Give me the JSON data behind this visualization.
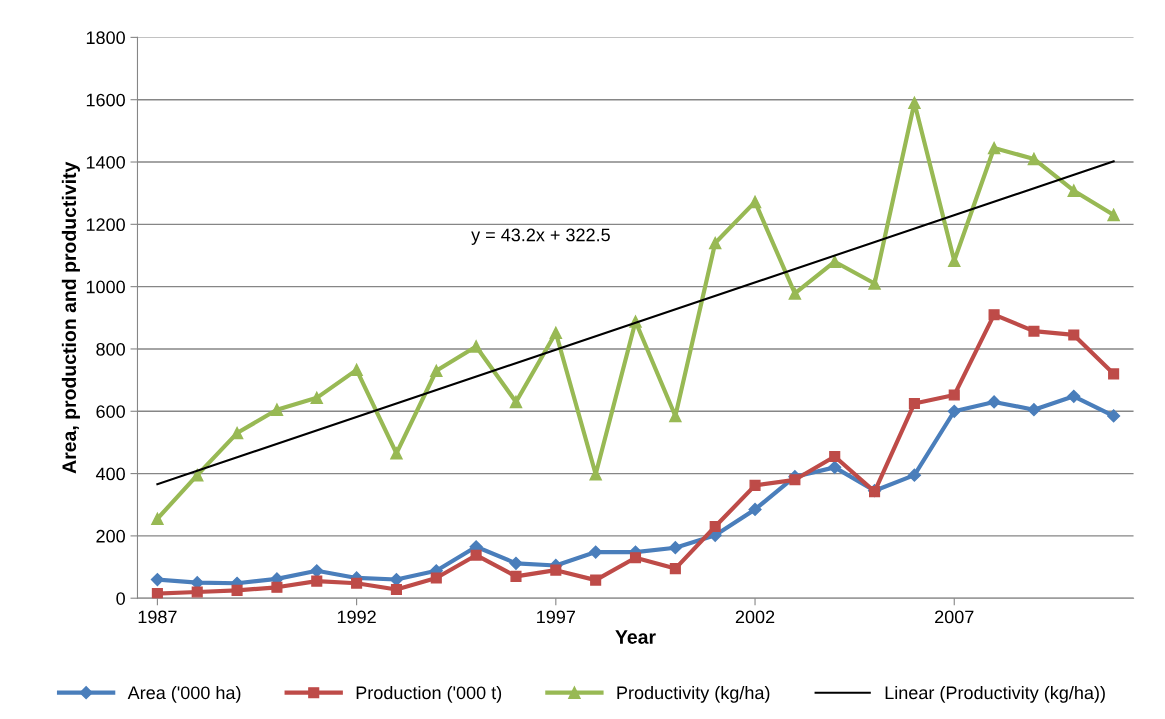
{
  "chart_data": {
    "type": "line",
    "xlabel": "Year",
    "ylabel": "Area, production and productivity",
    "x": [
      1987,
      1988,
      1989,
      1990,
      1991,
      1992,
      1993,
      1994,
      1995,
      1996,
      1997,
      1998,
      1999,
      2000,
      2001,
      2002,
      2003,
      2004,
      2005,
      2006,
      2007,
      2008,
      2009,
      2010,
      2011
    ],
    "xlim": [
      1986.5,
      2011.5
    ],
    "xticks": [
      1987,
      1992,
      1997,
      2002,
      2007
    ],
    "ylim": [
      0,
      1800
    ],
    "yticks": [
      0,
      200,
      400,
      600,
      800,
      1000,
      1200,
      1400,
      1600,
      1800
    ],
    "grid": "y",
    "legend": "bottom",
    "series": [
      {
        "name": "Area ('000 ha)",
        "color": "#4a7ebb",
        "marker": "diamond",
        "values": [
          60,
          50,
          48,
          62,
          88,
          65,
          60,
          88,
          165,
          112,
          105,
          148,
          148,
          162,
          202,
          285,
          390,
          420,
          345,
          395,
          600,
          630,
          605,
          648,
          585
        ]
      },
      {
        "name": "Production ('000 t)",
        "color": "#be4b48",
        "marker": "square",
        "values": [
          15,
          20,
          25,
          35,
          55,
          48,
          28,
          65,
          138,
          70,
          90,
          58,
          130,
          95,
          230,
          362,
          380,
          455,
          342,
          625,
          652,
          910,
          857,
          845,
          720
        ]
      },
      {
        "name": "Productivity (kg/ha)",
        "color": "#98b954",
        "marker": "triangle",
        "values": [
          255,
          395,
          530,
          605,
          643,
          733,
          465,
          730,
          808,
          630,
          852,
          398,
          888,
          585,
          1140,
          1272,
          978,
          1080,
          1010,
          1590,
          1083,
          1445,
          1410,
          1308,
          1230
        ]
      },
      {
        "name": "Linear (Productivity (kg/ha))",
        "color": "#000000",
        "marker": "none",
        "x": [
          1987,
          2011
        ],
        "values": [
          366,
          1402
        ]
      }
    ],
    "annotations": [
      "y = 43.2x + 322.5"
    ]
  }
}
